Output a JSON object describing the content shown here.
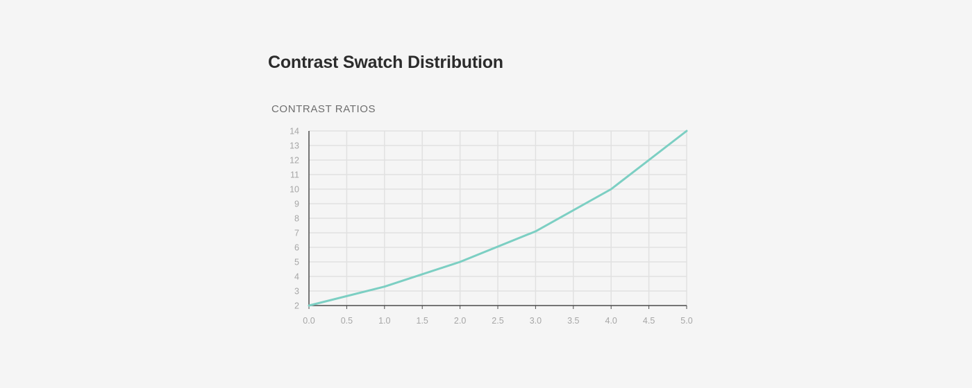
{
  "title": "Contrast Swatch Distribution",
  "colors": {
    "background": "#f5f5f5",
    "grid": "#e1e1e1",
    "axis": "#4b4b4b",
    "line": "#7ccfc3",
    "tick_label": "#a6a6a6"
  },
  "chart_data": {
    "type": "line",
    "title": "CONTRAST RATIOS",
    "xlabel": "",
    "ylabel": "",
    "xlim": [
      0,
      5
    ],
    "ylim": [
      2,
      14
    ],
    "grid": true,
    "x_ticks": [
      "0.0",
      "0.5",
      "1.0",
      "1.5",
      "2.0",
      "2.5",
      "3.0",
      "3.5",
      "4.0",
      "4.5",
      "5.0"
    ],
    "y_ticks": [
      "2",
      "3",
      "4",
      "5",
      "6",
      "7",
      "8",
      "9",
      "10",
      "11",
      "12",
      "13",
      "14"
    ],
    "series": [
      {
        "x": [
          0,
          1,
          2,
          3,
          4,
          5
        ],
        "y": [
          2.0,
          3.3,
          5.0,
          7.1,
          10.0,
          14.0
        ]
      }
    ]
  }
}
